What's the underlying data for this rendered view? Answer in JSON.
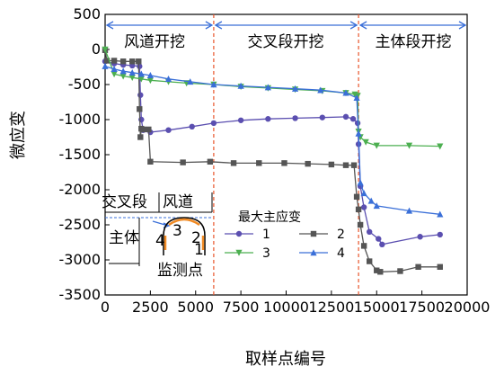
{
  "chart_data": {
    "type": "line",
    "xlabel": "取样点编号",
    "ylabel": "微应变",
    "xlim": [
      0,
      20000
    ],
    "ylim": [
      -3500,
      500
    ],
    "xticks": [
      0,
      2500,
      5000,
      7500,
      10000,
      12500,
      15000,
      17500,
      20000
    ],
    "yticks": [
      500,
      0,
      -500,
      -1000,
      -1500,
      -2000,
      -2500,
      -3000,
      -3500
    ],
    "phase_boundaries": [
      6000,
      14000
    ],
    "phases": [
      {
        "label": "风道开挖",
        "from": 0,
        "to": 6000
      },
      {
        "label": "交叉段开挖",
        "from": 6000,
        "to": 14000
      },
      {
        "label": "主体段开挖",
        "from": 14000,
        "to": 20000
      }
    ],
    "legend_title": "最大主应变",
    "series": [
      {
        "name": "1",
        "color": "#5b4fb0",
        "marker": "circle",
        "x": [
          0,
          500,
          1000,
          1500,
          1900,
          1950,
          2000,
          2100,
          2500,
          3500,
          4800,
          6000,
          7500,
          9000,
          10500,
          12000,
          13300,
          13700,
          13950,
          14000,
          14100,
          14300,
          14600,
          15100,
          15300,
          17400,
          18500
        ],
        "y": [
          -170,
          -200,
          -220,
          -230,
          -240,
          -650,
          -1000,
          -1150,
          -1180,
          -1150,
          -1100,
          -1050,
          -1010,
          -990,
          -980,
          -970,
          -960,
          -990,
          -1050,
          -1350,
          -1950,
          -2250,
          -2600,
          -2700,
          -2780,
          -2670,
          -2640
        ]
      },
      {
        "name": "2",
        "color": "#555555",
        "marker": "square",
        "x": [
          0,
          100,
          500,
          1000,
          1500,
          1850,
          1900,
          1950,
          2000,
          2100,
          2400,
          2500,
          4300,
          5800,
          7100,
          8500,
          9900,
          11200,
          12500,
          13300,
          13750,
          13900,
          14000,
          14100,
          14300,
          14600,
          15000,
          15200,
          16300,
          17300,
          18500
        ],
        "y": [
          -10,
          -160,
          -160,
          -170,
          -170,
          -170,
          -850,
          -1250,
          -1130,
          -1140,
          -1140,
          -1600,
          -1610,
          -1600,
          -1620,
          -1620,
          -1620,
          -1630,
          -1640,
          -1650,
          -1650,
          -2100,
          -2280,
          -2500,
          -2800,
          -3020,
          -3150,
          -3170,
          -3160,
          -3100,
          -3100
        ]
      },
      {
        "name": "3",
        "color": "#4caf50",
        "marker": "triangle-down",
        "x": [
          0,
          500,
          1000,
          1500,
          2000,
          2500,
          3500,
          4500,
          6000,
          7500,
          9000,
          10500,
          12000,
          13300,
          13800,
          13950,
          14000,
          14100,
          14400,
          15000,
          16800,
          18500
        ],
        "y": [
          0,
          -350,
          -380,
          -400,
          -420,
          -440,
          -460,
          -480,
          -500,
          -530,
          -550,
          -570,
          -590,
          -620,
          -640,
          -660,
          -1170,
          -1250,
          -1320,
          -1370,
          -1370,
          -1380
        ]
      },
      {
        "name": "4",
        "color": "#3a6fd8",
        "marker": "triangle-up",
        "x": [
          0,
          500,
          1000,
          1500,
          2000,
          2500,
          3500,
          4700,
          6000,
          7500,
          9000,
          10500,
          11900,
          13300,
          13900,
          14000,
          14100,
          14300,
          14700,
          15000,
          16800,
          18500
        ],
        "y": [
          -240,
          -280,
          -310,
          -330,
          -350,
          -370,
          -420,
          -460,
          -500,
          -520,
          -540,
          -560,
          -580,
          -620,
          -690,
          -1200,
          -1900,
          -2050,
          -2160,
          -2230,
          -2300,
          -2350
        ]
      }
    ],
    "inset": {
      "labels": {
        "cross_section": "交叉段",
        "air_duct": "风道",
        "main_body": "主体",
        "caption": "监测点",
        "point_1": "1",
        "point_2": "2",
        "point_3": "3",
        "point_4": "4"
      }
    }
  }
}
